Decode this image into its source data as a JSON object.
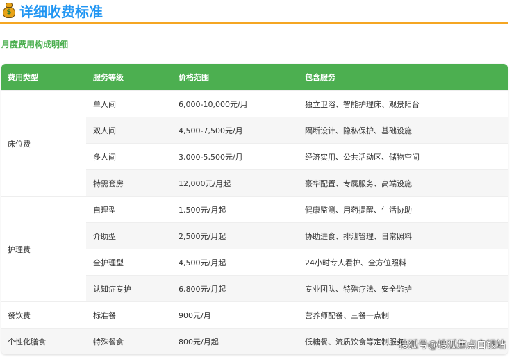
{
  "header": {
    "title": "详细收费标准",
    "icon": "money-bag-icon"
  },
  "section": {
    "subtitle": "月度费用构成明细"
  },
  "table": {
    "columns": [
      "费用类型",
      "服务等级",
      "价格范围",
      "包含服务"
    ],
    "categories": [
      {
        "label": "床位费",
        "rows": 4
      },
      {
        "label": "护理费",
        "rows": 4
      },
      {
        "label": "餐饮费",
        "rows": 1
      },
      {
        "label": "个性化膳食",
        "rows": 1
      }
    ],
    "rows": [
      {
        "level": "单人间",
        "price": "6,000-10,000元/月",
        "services": "独立卫浴、智能护理床、观景阳台"
      },
      {
        "level": "双人间",
        "price": "4,500-7,500元/月",
        "services": "隔断设计、隐私保护、基础设施"
      },
      {
        "level": "多人间",
        "price": "3,000-5,500元/月",
        "services": "经济实用、公共活动区、储物空间"
      },
      {
        "level": "特需套房",
        "price": "12,000元/月起",
        "services": "豪华配置、专属服务、高端设施"
      },
      {
        "level": "自理型",
        "price": "1,500元/月起",
        "services": "健康监测、用药提醒、生活协助"
      },
      {
        "level": "介助型",
        "price": "2,500元/月起",
        "services": "协助进食、排泄管理、日常照料"
      },
      {
        "level": "全护理型",
        "price": "4,500元/月起",
        "services": "24小时专人看护、全方位照料"
      },
      {
        "level": "认知症专护",
        "price": "6,800元/月起",
        "services": "专业团队、特殊疗法、安全监护"
      },
      {
        "level": "标准餐",
        "price": "900元/月",
        "services": "营养师配餐、三餐一点制"
      },
      {
        "level": "特殊餐食",
        "price": "800元/月起",
        "services": "低糖餐、流质饮食等定制服务"
      }
    ]
  },
  "watermark": "搜狐号@搜狐焦点白银站",
  "colors": {
    "title": "#2196f3",
    "accent_rule": "#f5a623",
    "header_bg": "#4caf50"
  }
}
